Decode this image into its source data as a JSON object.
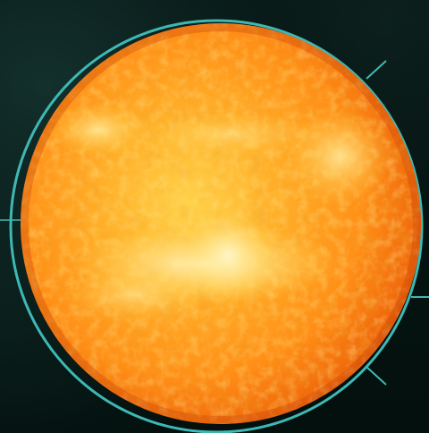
{
  "scene": {
    "subject": "sun-sphere",
    "colors": {
      "background": "#04100f",
      "ring": "#3fb8b4",
      "sun_core": "#ffd24a",
      "sun_mid": "#ff9a1a",
      "sun_edge": "#e0560a"
    }
  }
}
